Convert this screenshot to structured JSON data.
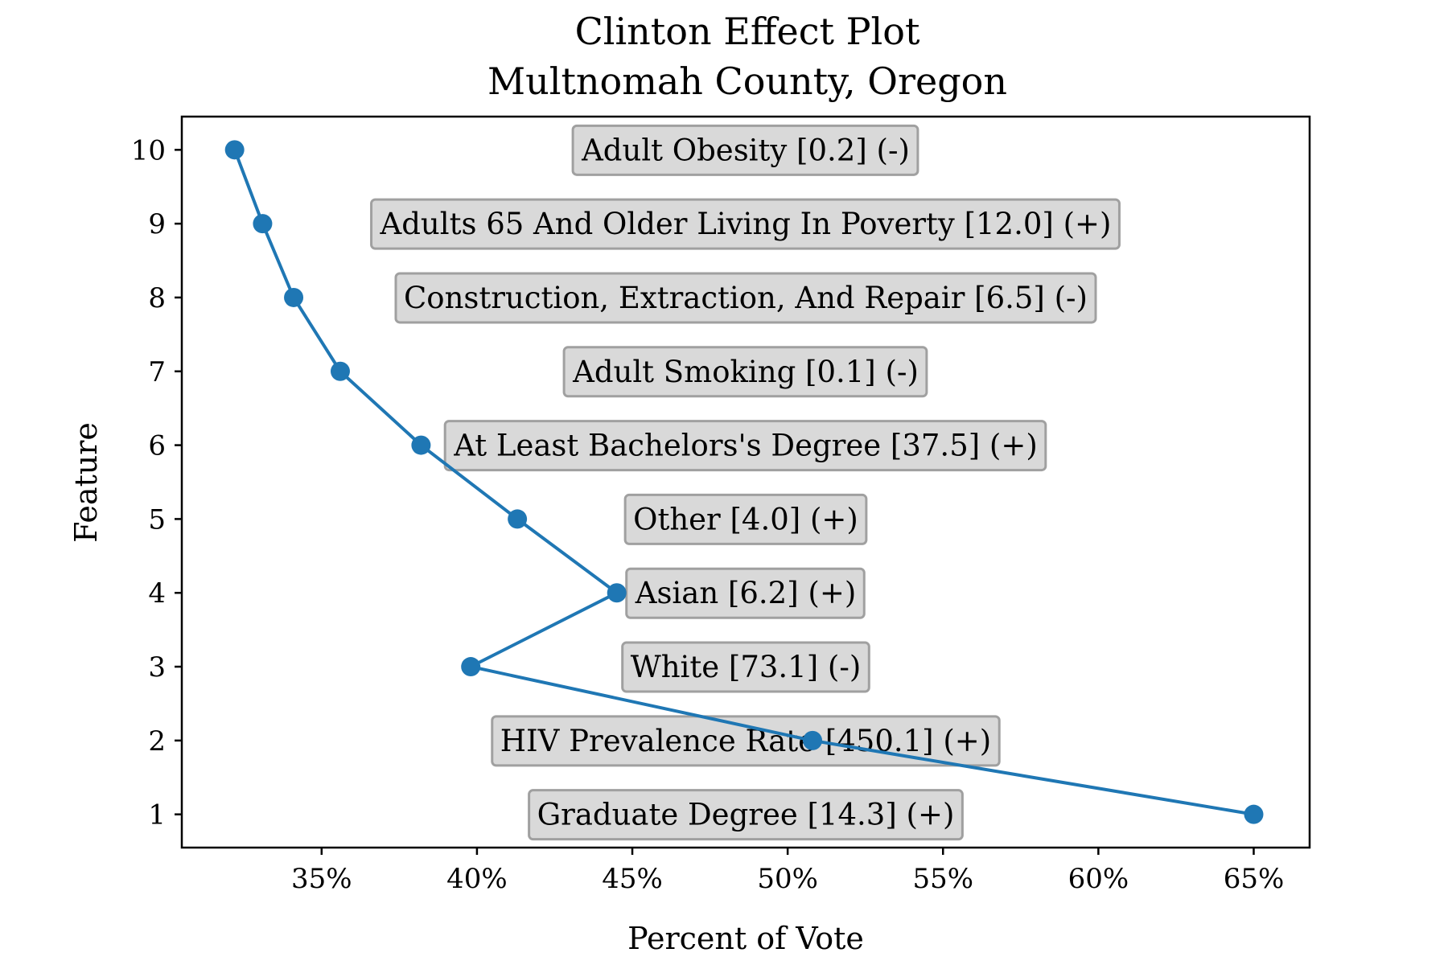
{
  "chart_data": {
    "type": "line",
    "title": "Clinton Effect Plot",
    "subtitle": "Multnomah County, Oregon",
    "xlabel": "Percent of Vote",
    "ylabel": "Feature",
    "xlim": [
      30.5,
      66.8
    ],
    "ylim": [
      10.45,
      0.55
    ],
    "x_ticks": [
      35,
      40,
      45,
      50,
      55,
      60,
      65
    ],
    "x_tick_labels": [
      "35%",
      "40%",
      "45%",
      "50%",
      "55%",
      "60%",
      "65%"
    ],
    "y_ticks": [
      1,
      2,
      3,
      4,
      5,
      6,
      7,
      8,
      9,
      10
    ],
    "y_tick_labels": [
      "1",
      "2",
      "3",
      "4",
      "5",
      "6",
      "7",
      "8",
      "9",
      "10"
    ],
    "grid": false,
    "series": [
      {
        "color": "#1f77b4",
        "points": [
          {
            "feature": 1,
            "x": 65.0
          },
          {
            "feature": 2,
            "x": 50.8
          },
          {
            "feature": 3,
            "x": 39.8
          },
          {
            "feature": 4,
            "x": 44.5
          },
          {
            "feature": 5,
            "x": 41.3
          },
          {
            "feature": 6,
            "x": 38.2
          },
          {
            "feature": 7,
            "x": 35.6
          },
          {
            "feature": 8,
            "x": 34.1
          },
          {
            "feature": 9,
            "x": 33.1
          },
          {
            "feature": 10,
            "x": 32.2
          }
        ]
      }
    ],
    "annotations": [
      {
        "feature": 1,
        "text": "Graduate Degree [14.3] (+)"
      },
      {
        "feature": 2,
        "text": "HIV Prevalence Rate [450.1] (+)"
      },
      {
        "feature": 3,
        "text": "White [73.1] (-)"
      },
      {
        "feature": 4,
        "text": "Asian [6.2] (+)"
      },
      {
        "feature": 5,
        "text": "Other [4.0] (+)"
      },
      {
        "feature": 6,
        "text": "At Least Bachelors's Degree [37.5] (+)"
      },
      {
        "feature": 7,
        "text": "Adult Smoking [0.1] (-)"
      },
      {
        "feature": 8,
        "text": "Construction, Extraction, And Repair [6.5] (-)"
      },
      {
        "feature": 9,
        "text": "Adults 65 And Older Living In Poverty [12.0] (+)"
      },
      {
        "feature": 10,
        "text": "Adult Obesity [0.2] (-)"
      }
    ],
    "colors": {
      "line": "#1f77b4",
      "label_box_fill": "#d9d9d9",
      "label_box_border": "#a0a0a0"
    }
  }
}
